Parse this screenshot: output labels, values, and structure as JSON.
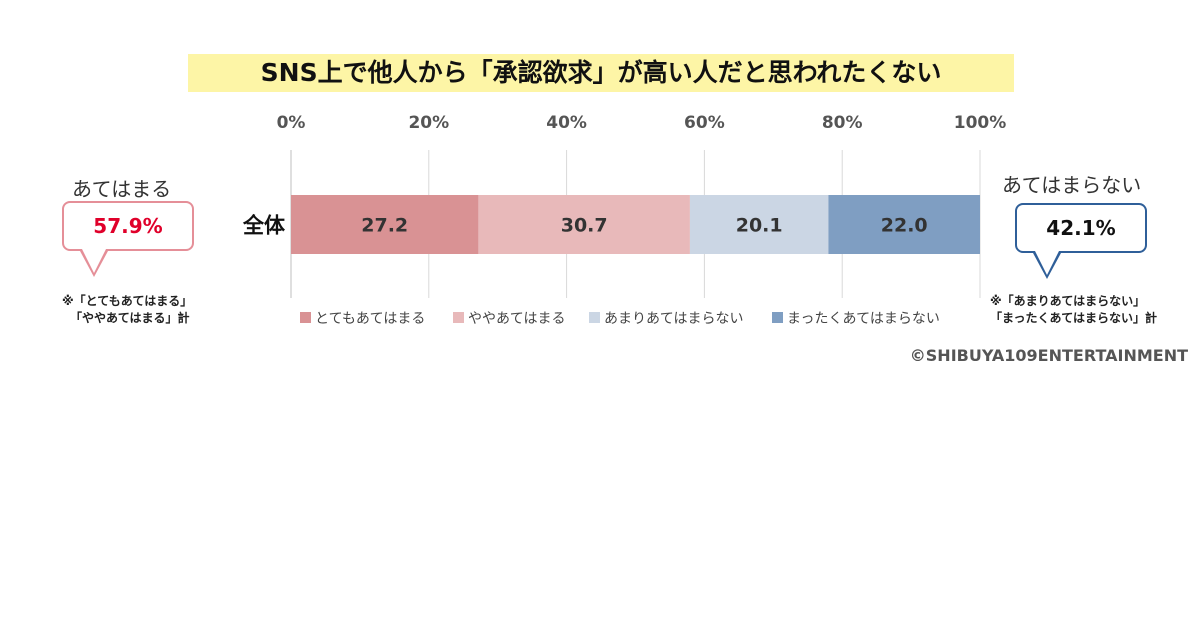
{
  "chart_data": {
    "type": "bar",
    "orientation": "horizontal-stacked-100",
    "title": "SNS上で他人から「承認欲求」が高い人だと思われたくない",
    "categories": [
      "全体"
    ],
    "x_ticks": [
      "0%",
      "20%",
      "40%",
      "60%",
      "80%",
      "100%"
    ],
    "xlim": [
      0,
      100
    ],
    "grid": "vertical",
    "legend_position": "bottom",
    "series": [
      {
        "name": "とてもあてはまる",
        "values": [
          27.2
        ],
        "value_labels": [
          "27.2"
        ],
        "color": "#d99294"
      },
      {
        "name": "ややあてはまる",
        "values": [
          30.7
        ],
        "value_labels": [
          "30.7"
        ],
        "color": "#e8b9ba"
      },
      {
        "name": "あまりあてはまらない",
        "values": [
          20.1
        ],
        "value_labels": [
          "20.1"
        ],
        "color": "#cbd6e4"
      },
      {
        "name": "まったくあてはまらない",
        "values": [
          22.0
        ],
        "value_labels": [
          "22.0"
        ],
        "color": "#7f9ec2"
      }
    ]
  },
  "left_summary": {
    "label": "あてはまる",
    "value": "57.9%",
    "note_line1": "※「とてもあてはまる」",
    "note_line2": "「ややあてはまる」計"
  },
  "right_summary": {
    "label": "あてはまらない",
    "value": "42.1%",
    "note_line1": "※「あまりあてはまらない」",
    "note_line2": "「まったくあてはまらない」計"
  },
  "copyright": "©SHIBUYA109ENTERTAINMENT"
}
